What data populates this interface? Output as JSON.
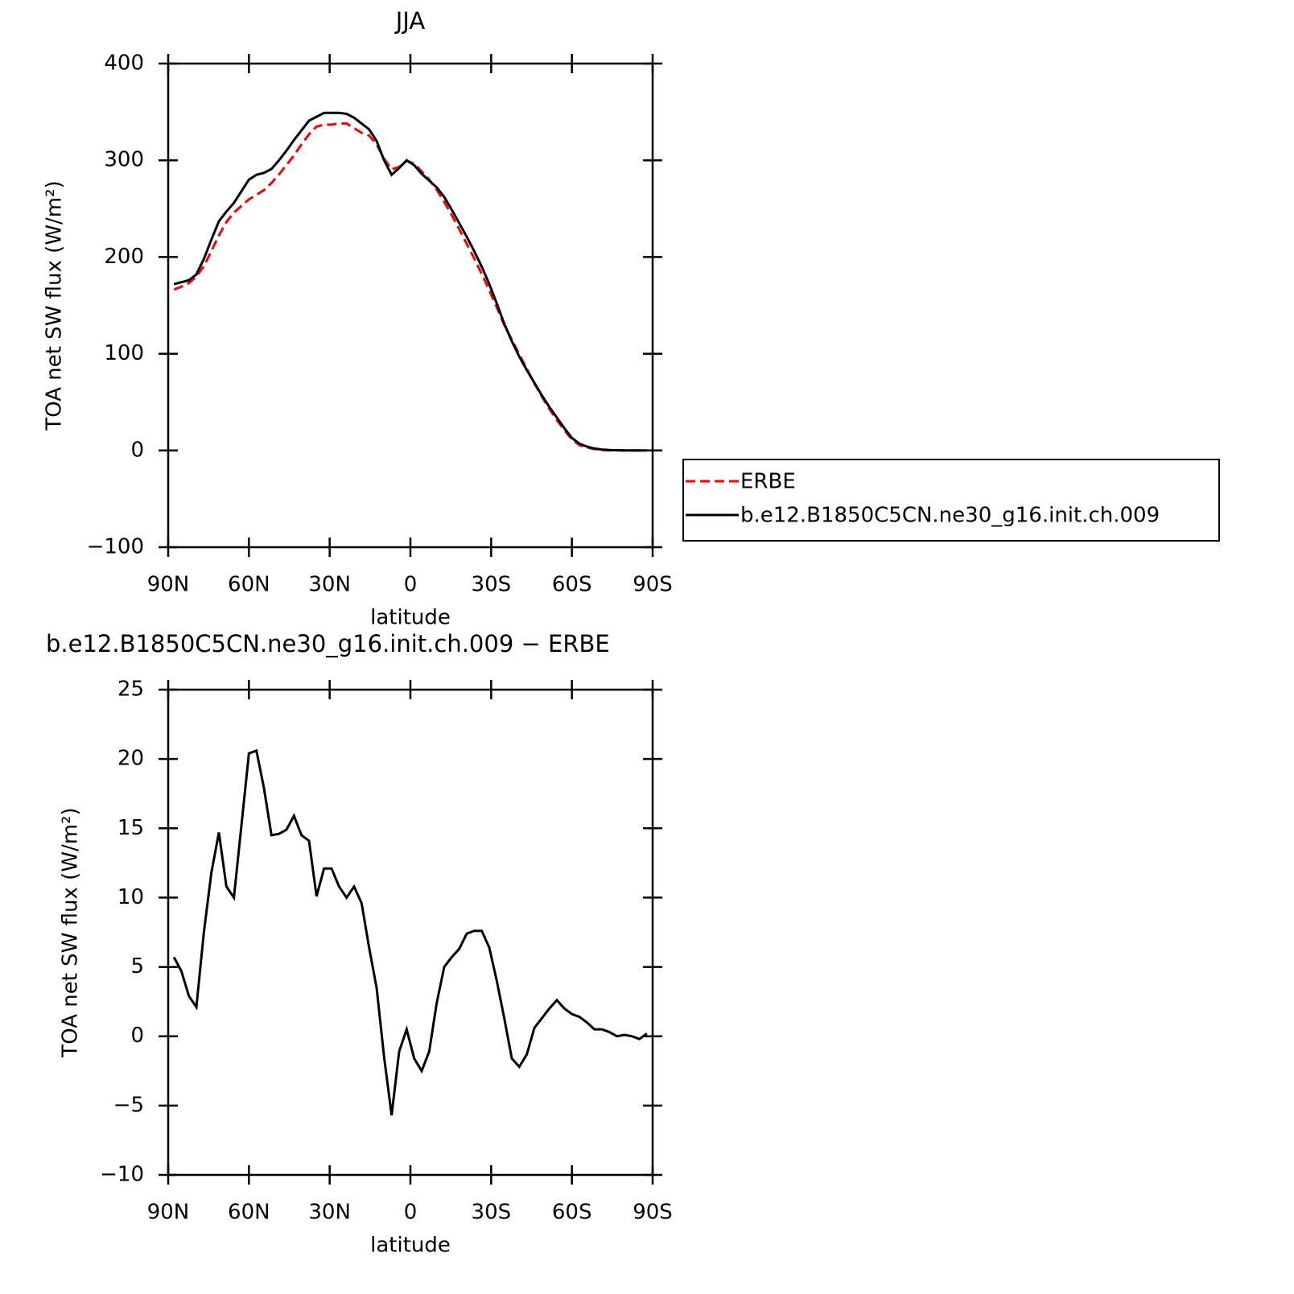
{
  "chart_data": [
    {
      "type": "line",
      "title": "JJA",
      "xlabel": "latitude",
      "ylabel": "TOA net SW flux (W/m²)",
      "x": [
        87.86,
        85.1,
        82.31,
        79.53,
        76.74,
        73.95,
        71.16,
        68.37,
        65.58,
        62.79,
        60.0,
        57.21,
        54.42,
        51.63,
        48.84,
        46.05,
        43.26,
        40.46,
        37.67,
        34.88,
        32.09,
        29.3,
        26.51,
        23.72,
        20.93,
        18.14,
        15.35,
        12.56,
        9.77,
        6.98,
        4.19,
        1.4,
        -1.4,
        -4.19,
        -6.98,
        -9.77,
        -12.56,
        -15.35,
        -18.14,
        -20.93,
        -23.72,
        -26.51,
        -29.3,
        -32.09,
        -34.88,
        -37.67,
        -40.46,
        -43.26,
        -46.05,
        -48.84,
        -51.63,
        -54.42,
        -57.21,
        -60.0,
        -62.79,
        -65.58,
        -68.37,
        -71.16,
        -73.95,
        -76.74,
        -79.53,
        -82.31,
        -85.1,
        -87.86
      ],
      "xlim": [
        90,
        -90
      ],
      "xticks": [
        {
          "value": 90,
          "label": "90N"
        },
        {
          "value": 60,
          "label": "60N"
        },
        {
          "value": 30,
          "label": "30N"
        },
        0,
        {
          "value": -30,
          "label": "30S"
        },
        {
          "value": -60,
          "label": "60S"
        },
        {
          "value": -90,
          "label": "90S"
        }
      ],
      "ylim": [
        -100,
        400
      ],
      "yticks": [
        {
          "value": -100,
          "label": "−100"
        },
        0,
        100,
        200,
        300,
        400
      ],
      "legend": "outside-right",
      "series": [
        {
          "name": "ERBE",
          "color": "#ff0000",
          "style": "dashed",
          "values": [
            166.3,
            169.3,
            173.1,
            179.9,
            190.5,
            206.2,
            222.3,
            236.2,
            246,
            252.8,
            259.6,
            264.4,
            269.1,
            276.5,
            285.4,
            295.1,
            305.1,
            316.5,
            326.9,
            334.9,
            336.9,
            336.9,
            338.2,
            338,
            333.2,
            328.4,
            325.6,
            316.5,
            301.5,
            290.7,
            293.1,
            299.5,
            296.6,
            288.5,
            280.1,
            269.6,
            257,
            243.3,
            228.7,
            213.6,
            198.4,
            182.4,
            165.6,
            148,
            129.7,
            114.6,
            99.2,
            84.3,
            69.4,
            55.7,
            43,
            31.4,
            21,
            11.4,
            5.6,
            3,
            1.5,
            0.5,
            0.2,
            0.2,
            0,
            0,
            0,
            0
          ]
        },
        {
          "name": "b.e12.B1850C5CN.ne30_g16.init.ch.009",
          "color": "#000000",
          "style": "solid",
          "values": [
            172,
            174,
            176,
            182,
            198,
            218,
            237,
            247,
            256,
            268,
            280,
            285,
            287,
            291,
            300,
            310,
            321,
            331,
            341,
            345,
            349,
            349,
            349,
            348,
            344,
            338,
            332,
            320,
            300,
            285,
            292,
            300,
            295,
            286,
            279,
            272,
            262,
            249,
            235,
            221,
            206,
            190,
            172,
            152,
            131,
            113,
            97,
            83,
            70,
            57,
            45,
            34,
            23,
            13,
            7,
            4,
            2,
            1,
            0.5,
            0.2,
            0,
            0,
            0,
            0
          ]
        }
      ]
    },
    {
      "type": "line",
      "title": "b.e12.B1850C5CN.ne30_g16.init.ch.009 − ERBE",
      "xlabel": "latitude",
      "ylabel": "TOA net SW flux (W/m²)",
      "x": [
        87.86,
        85.1,
        82.31,
        79.53,
        76.74,
        73.95,
        71.16,
        68.37,
        65.58,
        62.79,
        60.0,
        57.21,
        54.42,
        51.63,
        48.84,
        46.05,
        43.26,
        40.46,
        37.67,
        34.88,
        32.09,
        29.3,
        26.51,
        23.72,
        20.93,
        18.14,
        15.35,
        12.56,
        9.77,
        6.98,
        4.19,
        1.4,
        -1.4,
        -4.19,
        -6.98,
        -9.77,
        -12.56,
        -15.35,
        -18.14,
        -20.93,
        -23.72,
        -26.51,
        -29.3,
        -32.09,
        -34.88,
        -37.67,
        -40.46,
        -43.26,
        -46.05,
        -48.84,
        -51.63,
        -54.42,
        -57.21,
        -60.0,
        -62.79,
        -65.58,
        -68.37,
        -71.16,
        -73.95,
        -76.74,
        -79.53,
        -82.31,
        -85.1,
        -87.86
      ],
      "xlim": [
        90,
        -90
      ],
      "xticks": [
        {
          "value": 90,
          "label": "90N"
        },
        {
          "value": 60,
          "label": "60N"
        },
        {
          "value": 30,
          "label": "30N"
        },
        0,
        {
          "value": -30,
          "label": "30S"
        },
        {
          "value": -60,
          "label": "60S"
        },
        {
          "value": -90,
          "label": "90S"
        }
      ],
      "ylim": [
        -10,
        25
      ],
      "yticks": [
        {
          "value": -10,
          "label": "−10"
        },
        {
          "value": -5,
          "label": "−5"
        },
        0,
        5,
        10,
        15,
        20,
        25
      ],
      "series": [
        {
          "color": "#000000",
          "style": "solid",
          "values": [
            5.7,
            4.7,
            2.9,
            2.1,
            7.5,
            11.8,
            14.7,
            10.8,
            10.0,
            15.2,
            20.4,
            20.6,
            17.9,
            14.5,
            14.6,
            14.9,
            15.9,
            14.5,
            14.1,
            10.1,
            12.1,
            12.1,
            10.8,
            10.0,
            10.8,
            9.6,
            6.4,
            3.5,
            -1.5,
            -5.7,
            -1.1,
            0.5,
            -1.6,
            -2.5,
            -1.1,
            2.4,
            5.0,
            5.7,
            6.3,
            7.4,
            7.6,
            7.6,
            6.4,
            4.0,
            1.3,
            -1.6,
            -2.2,
            -1.3,
            0.6,
            1.3,
            2.0,
            2.6,
            2.0,
            1.6,
            1.4,
            1.0,
            0.5,
            0.5,
            0.3,
            0.0,
            0.1,
            0.0,
            -0.2,
            0.2
          ]
        }
      ]
    }
  ]
}
